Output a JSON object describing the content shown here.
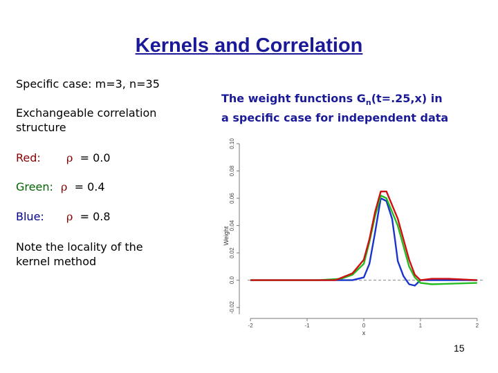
{
  "slide": {
    "title": "Kernels and Correlation",
    "specific_case": "Specific case: m=3, n=35",
    "exchangeable_line1": "Exchangeable correlation",
    "exchangeable_line2": "structure",
    "red_label": "Red:",
    "green_label": "Green:",
    "blue_label": "Blue:",
    "rho_symbol": "ρ",
    "red_value": "= 0.0",
    "green_value": "= 0.4",
    "blue_value": "= 0.8",
    "note_line1": "Note the locality of the",
    "note_line2": "kernel method",
    "caption_part1": "The weight functions G",
    "caption_sub": "n",
    "caption_part2": "(t=.25,x) in",
    "caption_line2": "a specific case for independent data",
    "page_number": "15"
  },
  "colors": {
    "title": "#1a1a99",
    "red_label": "#8b0000",
    "green_label": "#006400",
    "blue_label": "#00008b",
    "rho": "#8b0000"
  },
  "chart_data": {
    "type": "line",
    "ylabel": "Weight",
    "xlabel": "x",
    "xlim": [
      -2.05,
      2.1
    ],
    "ylim": [
      -0.025,
      0.1
    ],
    "x_ticks": [
      -2,
      -1,
      0,
      1,
      2
    ],
    "y_ticks": [
      -0.02,
      0.0,
      0.02,
      0.04,
      0.06,
      0.08,
      0.1
    ],
    "y_tick_labels": [
      "-0.02",
      "0.0",
      "0.02",
      "0.04",
      "0.06",
      "0.08",
      "0.10"
    ],
    "x_tick_labels": [
      "-2",
      "-1",
      "0",
      "1",
      "2"
    ],
    "reference_line_y": 0,
    "series": [
      {
        "color": "#1a33cc",
        "x": [
          -2.0,
          -0.6,
          -0.2,
          0.0,
          0.1,
          0.2,
          0.3,
          0.4,
          0.5,
          0.55,
          0.6,
          0.7,
          0.8,
          0.9,
          1.0,
          1.2,
          2.0
        ],
        "y": [
          0.0,
          0.0,
          0.0,
          0.002,
          0.012,
          0.035,
          0.06,
          0.058,
          0.045,
          0.03,
          0.014,
          0.003,
          -0.003,
          -0.004,
          0.0,
          0.0,
          0.0
        ]
      },
      {
        "color": "#22bb22",
        "x": [
          -2.0,
          -0.8,
          -0.4,
          -0.2,
          0.0,
          0.1,
          0.2,
          0.3,
          0.4,
          0.5,
          0.6,
          0.7,
          0.8,
          0.9,
          1.0,
          1.2,
          2.0
        ],
        "y": [
          0.0,
          0.0,
          0.001,
          0.004,
          0.012,
          0.028,
          0.047,
          0.062,
          0.06,
          0.05,
          0.04,
          0.025,
          0.01,
          0.002,
          -0.002,
          -0.003,
          -0.002
        ]
      },
      {
        "color": "#cc1111",
        "x": [
          -2.0,
          -1.0,
          -0.5,
          -0.2,
          0.0,
          0.1,
          0.2,
          0.3,
          0.4,
          0.5,
          0.6,
          0.7,
          0.8,
          0.9,
          1.0,
          1.2,
          1.5,
          2.0
        ],
        "y": [
          0.0,
          0.0,
          0.0,
          0.005,
          0.015,
          0.03,
          0.05,
          0.065,
          0.065,
          0.055,
          0.045,
          0.03,
          0.015,
          0.004,
          0.0,
          0.001,
          0.001,
          0.0
        ]
      }
    ]
  }
}
